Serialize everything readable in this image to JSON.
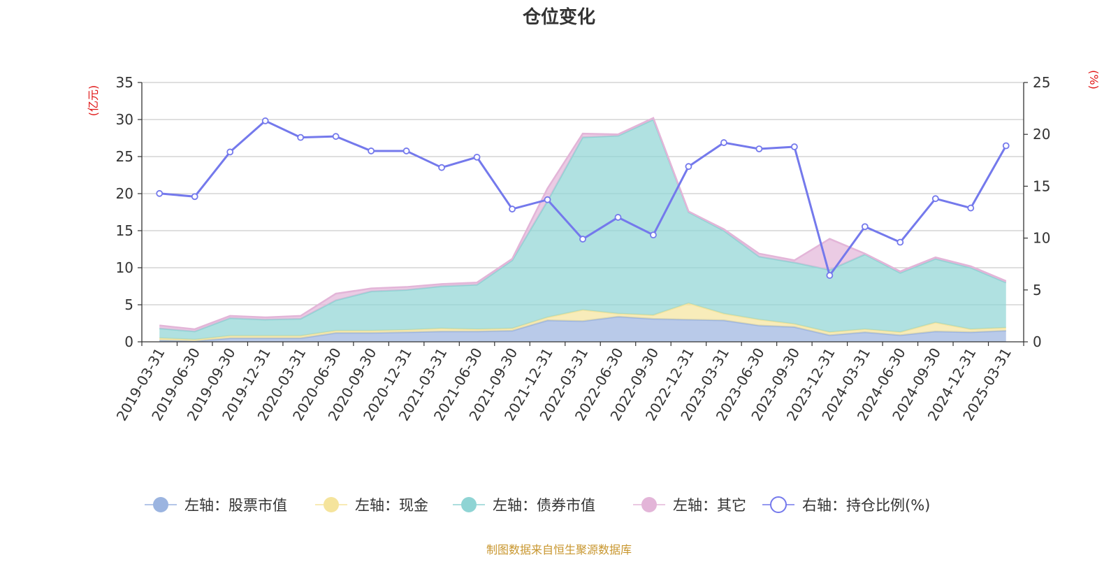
{
  "chart_data": {
    "type": "area",
    "title": "仓位变化",
    "left_axis_unit": "(亿元)",
    "right_axis_unit": "(%)",
    "left_ylim": [
      0,
      35
    ],
    "left_yticks": [
      0,
      5,
      10,
      15,
      20,
      25,
      30,
      35
    ],
    "right_ylim": [
      0,
      25
    ],
    "right_yticks": [
      0,
      5,
      10,
      15,
      20,
      25
    ],
    "grid": true,
    "legend_position": "bottom",
    "categories": [
      "2019-03-31",
      "2019-06-30",
      "2019-09-30",
      "2019-12-31",
      "2020-03-31",
      "2020-06-30",
      "2020-09-30",
      "2020-12-31",
      "2021-03-31",
      "2021-06-30",
      "2021-09-30",
      "2021-12-31",
      "2022-03-31",
      "2022-06-30",
      "2022-09-30",
      "2022-12-31",
      "2023-03-31",
      "2023-06-30",
      "2023-09-30",
      "2023-12-31",
      "2024-03-31",
      "2024-06-30",
      "2024-09-30",
      "2024-12-31",
      "2025-03-31"
    ],
    "series": [
      {
        "name": "左轴：股票市值",
        "axis": "left",
        "kind": "stacked-area",
        "color": "#9bb4e0",
        "values": [
          0.2,
          0.1,
          0.5,
          0.5,
          0.5,
          1.2,
          1.2,
          1.3,
          1.4,
          1.4,
          1.5,
          2.9,
          2.8,
          3.4,
          3.1,
          3.0,
          2.9,
          2.2,
          2.0,
          0.9,
          1.3,
          0.9,
          1.4,
          1.3,
          1.5
        ]
      },
      {
        "name": "左轴：现金",
        "axis": "left",
        "kind": "stacked-area",
        "color": "#f5e49c",
        "values": [
          0.3,
          0.2,
          0.3,
          0.3,
          0.3,
          0.3,
          0.3,
          0.3,
          0.4,
          0.3,
          0.3,
          0.4,
          1.5,
          0.4,
          0.5,
          2.2,
          0.9,
          0.8,
          0.4,
          0.4,
          0.4,
          0.4,
          1.2,
          0.4,
          0.4
        ]
      },
      {
        "name": "左轴：债券市值",
        "axis": "left",
        "kind": "stacked-area",
        "color": "#8fd4d4",
        "values": [
          1.3,
          1.1,
          2.4,
          2.2,
          2.3,
          4.1,
          5.3,
          5.4,
          5.7,
          6.0,
          9.2,
          15.7,
          23.3,
          24.0,
          26.4,
          12.3,
          11.2,
          8.5,
          8.3,
          8.4,
          10.1,
          8.0,
          8.6,
          8.3,
          6.1
        ]
      },
      {
        "name": "左轴：其它",
        "axis": "left",
        "kind": "stacked-area",
        "color": "#e3b5d8",
        "values": [
          0.4,
          0.3,
          0.3,
          0.3,
          0.4,
          0.9,
          0.4,
          0.4,
          0.3,
          0.3,
          0.2,
          1.7,
          0.5,
          0.2,
          0.2,
          0.1,
          0.2,
          0.4,
          0.3,
          4.2,
          0.1,
          0.2,
          0.2,
          0.2,
          0.2
        ]
      },
      {
        "name": "右轴：持仓比例(%)",
        "axis": "right",
        "kind": "line",
        "color": "#7479ec",
        "values": [
          14.3,
          14.0,
          18.3,
          21.3,
          19.7,
          19.8,
          18.4,
          18.4,
          16.8,
          17.8,
          12.8,
          13.7,
          9.9,
          12.0,
          10.3,
          16.9,
          19.2,
          18.6,
          18.8,
          6.4,
          11.1,
          9.6,
          13.8,
          12.9,
          18.9
        ]
      }
    ]
  },
  "footer": {
    "source": "制图数据来自恒生聚源数据库",
    "source_color": "#c8962e"
  },
  "colors": {
    "axis_unit": "#e01515",
    "grid": "#cccccc",
    "axis": "#333333"
  }
}
